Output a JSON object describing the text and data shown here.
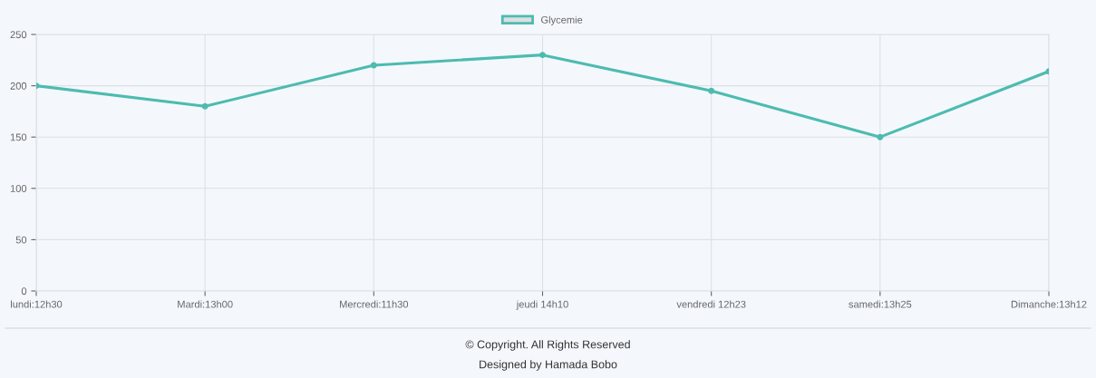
{
  "chart_data": {
    "type": "line",
    "categories": [
      "lundi:12h30",
      "Mardi:13h00",
      "Mercredi:11h30",
      "jeudi 14h10",
      "vendredi 12h23",
      "samedi:13h25",
      "Dimanche:13h12"
    ],
    "series": [
      {
        "name": "Glycemie",
        "color": "#4dbbb0",
        "values": [
          200,
          180,
          220,
          230,
          195,
          150,
          214
        ]
      }
    ],
    "ylim": [
      0,
      250
    ],
    "yticks": [
      0,
      50,
      100,
      150,
      200,
      250
    ],
    "grid": true,
    "legend": "top",
    "marker": "circle",
    "line_style": "solid",
    "annotations": [
      "© Copyright. All Rights Reserved",
      "Designed by Hamada Bobo"
    ]
  }
}
